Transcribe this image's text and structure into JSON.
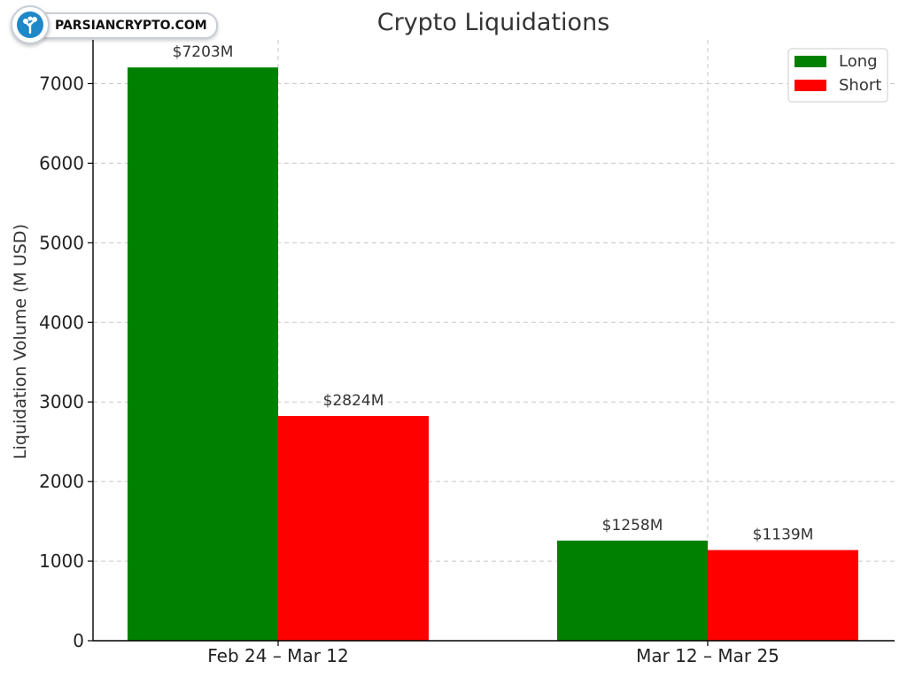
{
  "watermark": {
    "text": "PARSIANCRYPTO.COM",
    "icon": "tree-logo-icon"
  },
  "colors": {
    "long": "#008000",
    "short": "#ff0000",
    "grid": "#c8c8c8",
    "axis": "#000000",
    "text": "#333333"
  },
  "chart_data": {
    "type": "bar",
    "title": "Crypto Liquidations",
    "xlabel": "",
    "ylabel": "Liquidation Volume (M USD)",
    "categories": [
      "Feb 24 – Mar 12",
      "Mar 12 – Mar 25"
    ],
    "series": [
      {
        "name": "Long",
        "values": [
          7203,
          1258
        ],
        "labels": [
          "$7203M",
          "$1258M"
        ]
      },
      {
        "name": "Short",
        "values": [
          2824,
          1139
        ],
        "labels": [
          "$2824M",
          "$1139M"
        ]
      }
    ],
    "ylim": [
      0,
      7550
    ],
    "yticks": [
      0,
      1000,
      2000,
      3000,
      4000,
      5000,
      6000,
      7000
    ],
    "grid": true,
    "legend": "top-right"
  }
}
